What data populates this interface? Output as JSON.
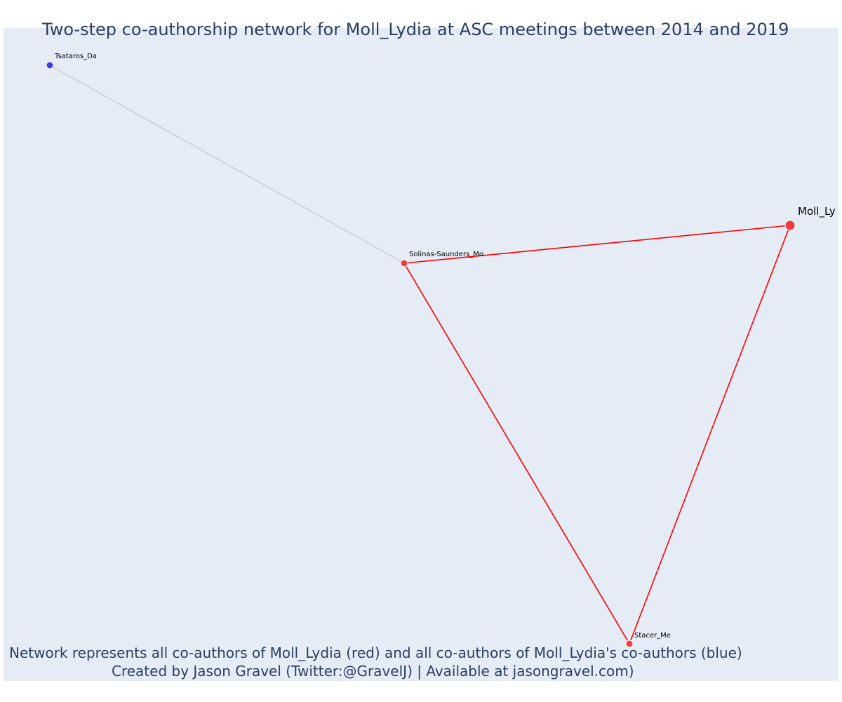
{
  "title": "Two-step co-authorship network for Moll_Lydia at ASC meetings between 2014 and 2019",
  "caption_line1": "Network represents all co-authors of Moll_Lydia (red) and all co-authors of Moll_Lydia's co-authors (blue)",
  "caption_line2": "Created by Jason Gravel (Twitter:@GravelJ) | Available at jasongravel.com)",
  "colors": {
    "plot_bg": "#e5ecf6",
    "coauthor": "#ef3b3b",
    "second_step": "#3b3bef",
    "direct_edge": "#ff0000",
    "indirect_edge": "#b8bccb",
    "title_text": "#2a3f5f"
  },
  "nodes": [
    {
      "id": "tsataros",
      "label": "Tsataros_Da",
      "group": "second_step"
    },
    {
      "id": "solinas",
      "label": "Solinas-Saunders_Mo",
      "group": "coauthor"
    },
    {
      "id": "moll",
      "label": "Moll_Ly",
      "group": "focal"
    },
    {
      "id": "stacer",
      "label": "Stacer_Me",
      "group": "coauthor"
    }
  ],
  "edges": [
    {
      "source": "tsataros",
      "target": "solinas",
      "type": "indirect"
    },
    {
      "source": "solinas",
      "target": "moll",
      "type": "direct"
    },
    {
      "source": "solinas",
      "target": "stacer",
      "type": "direct"
    },
    {
      "source": "moll",
      "target": "stacer",
      "type": "direct"
    }
  ]
}
